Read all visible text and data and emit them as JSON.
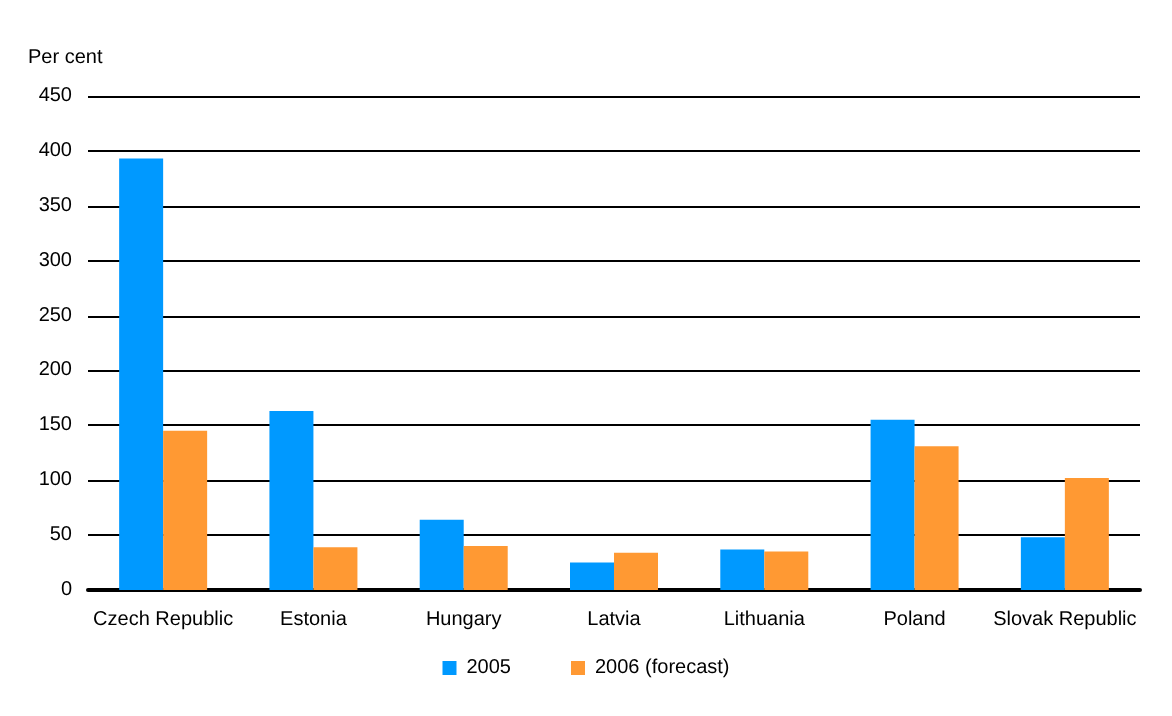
{
  "chart_data": {
    "type": "bar",
    "ylabel": "Per cent",
    "categories": [
      "Czech Republic",
      "Estonia",
      "Hungary",
      "Latvia",
      "Lithuania",
      "Poland",
      "Slovak Republic"
    ],
    "series": [
      {
        "name": "2005",
        "color": "#0099ff",
        "values": [
          393,
          163,
          64,
          25,
          37,
          155,
          48
        ]
      },
      {
        "name": "2006 (forecast)",
        "color": "#ff9933",
        "values": [
          145,
          39,
          40,
          34,
          35,
          131,
          102
        ]
      }
    ],
    "ylim": [
      0,
      450
    ],
    "yticks": [
      0,
      50,
      100,
      150,
      200,
      250,
      300,
      350,
      400,
      450
    ],
    "grid": "y",
    "legend": "bottom"
  }
}
